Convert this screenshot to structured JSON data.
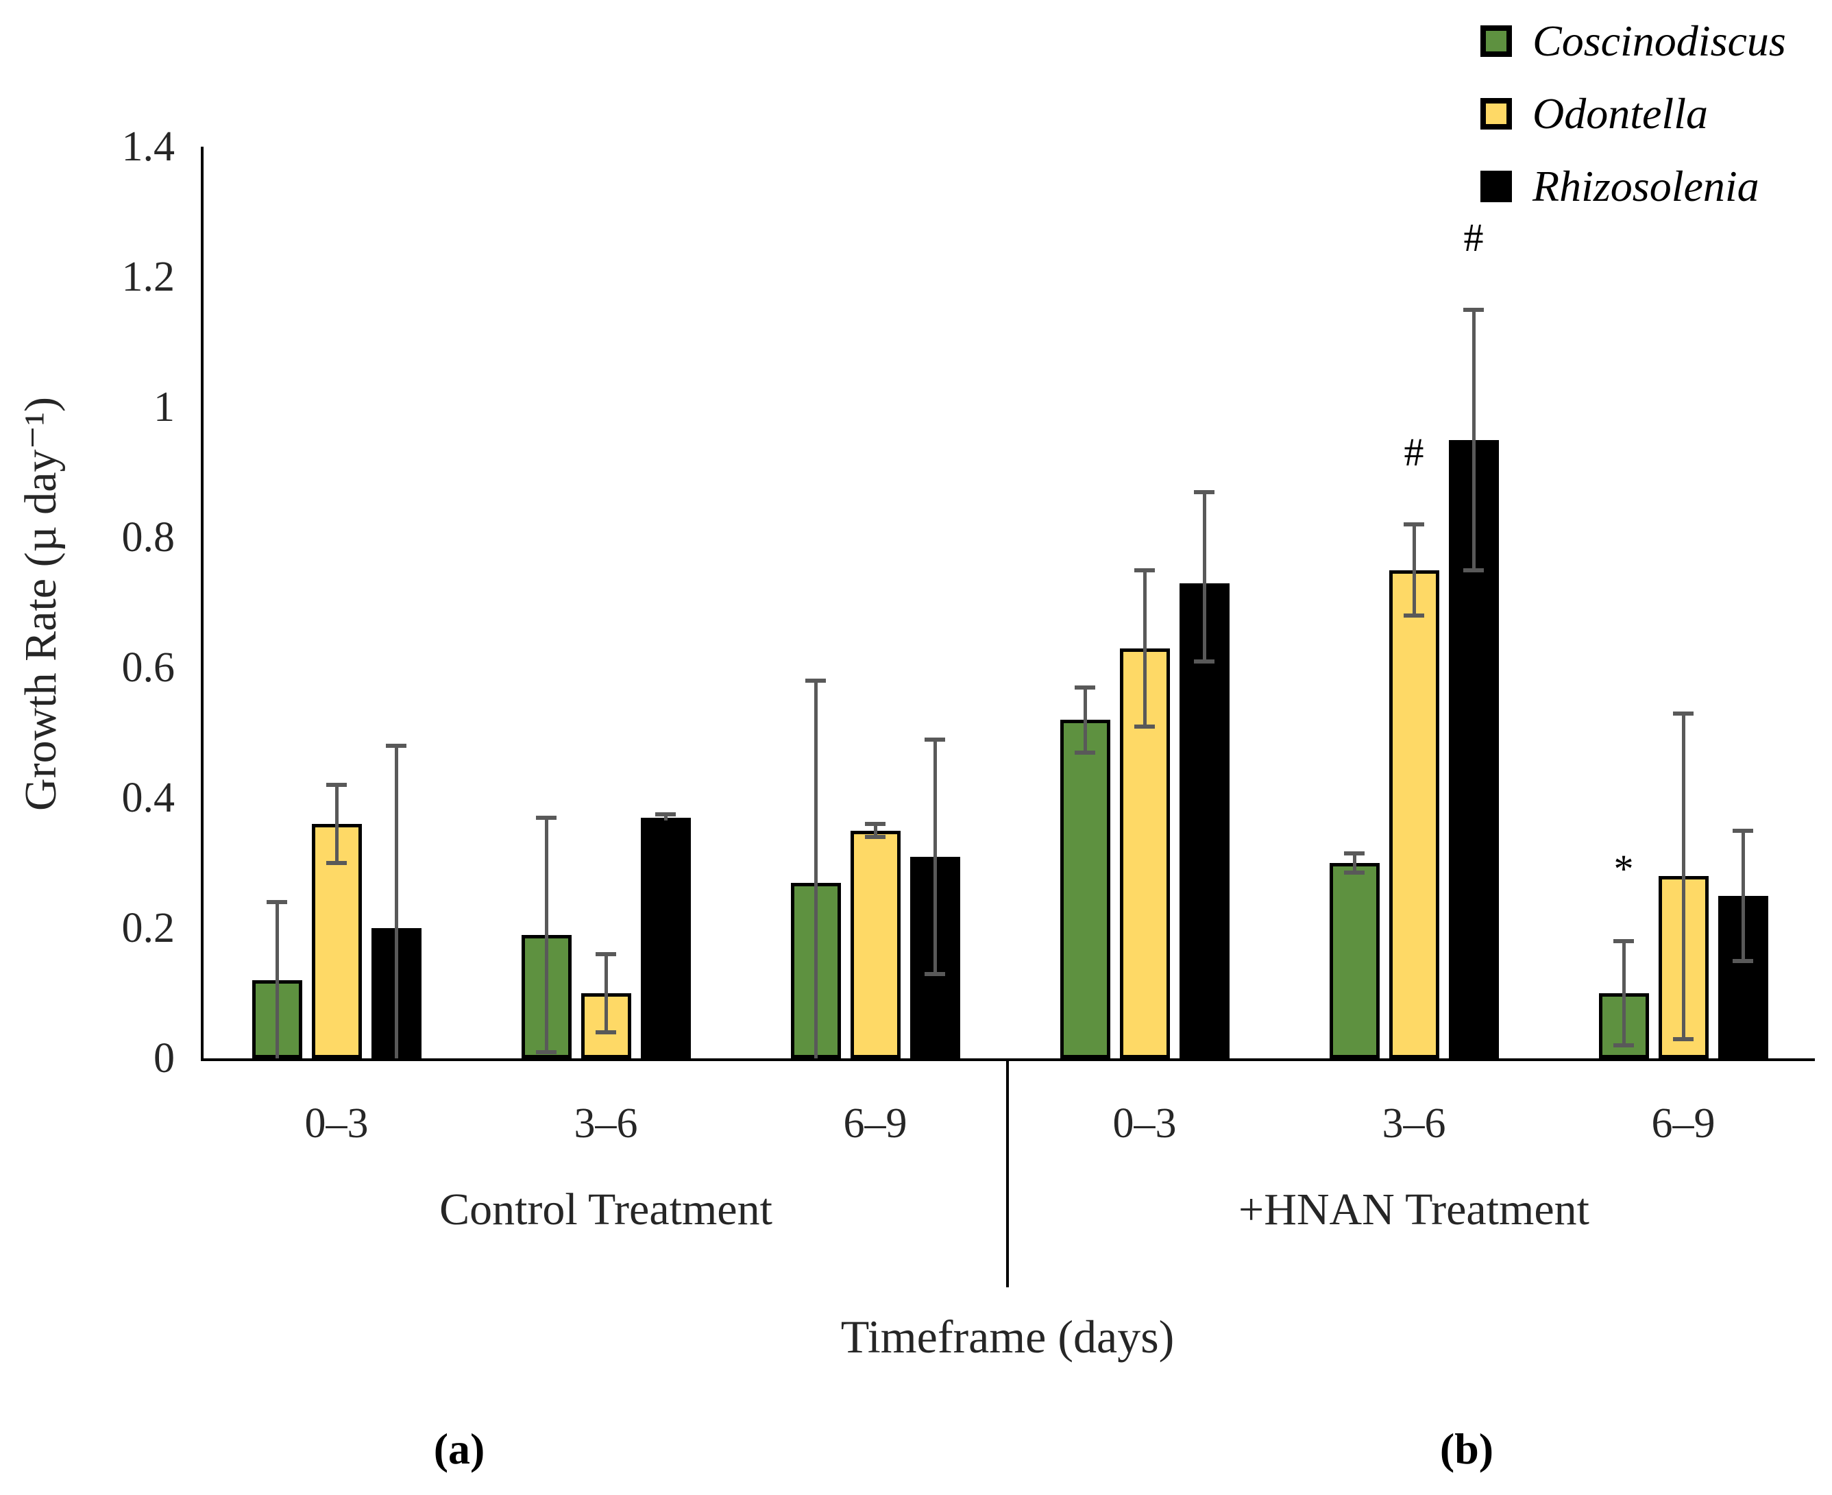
{
  "figure": {
    "ylabel": "Growth Rate (µ day⁻¹)",
    "xlabel": "Timeframe (days)",
    "caption_a": "(a)",
    "caption_b": "(b)"
  },
  "chart_data": {
    "type": "bar",
    "title": "",
    "ylabel": "Growth Rate (µ day⁻¹)",
    "xlabel": "Timeframe (days)",
    "ylim": [
      0,
      1.4
    ],
    "yticks": [
      0,
      0.2,
      0.4,
      0.6,
      0.8,
      1,
      1.2,
      1.4
    ],
    "ytick_labels": [
      "0",
      "0.2",
      "0.4",
      "0.6",
      "0.8",
      "1",
      "1.2",
      "1.4"
    ],
    "grid": false,
    "legend_position": "top-right",
    "error_bar_color": "#595959",
    "panels": [
      {
        "label": "Control Treatment",
        "caption": "(a)",
        "categories": [
          "0–3",
          "3–6",
          "6–9"
        ]
      },
      {
        "label": "+HNAN Treatment",
        "caption": "(b)",
        "categories": [
          "0–3",
          "3–6",
          "6–9"
        ]
      }
    ],
    "group_order": [
      "Control 0–3",
      "Control 3–6",
      "Control 6–9",
      "+HNAN 0–3",
      "+HNAN 3–6",
      "+HNAN 6–9"
    ],
    "series": [
      {
        "name": "Coscinodiscus",
        "color": "#5e9140",
        "values": [
          0.12,
          0.19,
          0.27,
          0.52,
          0.3,
          0.1
        ],
        "err_up": [
          0.12,
          0.18,
          0.31,
          0.05,
          0.015,
          0.08
        ],
        "err_down": [
          0.12,
          0.18,
          0.27,
          0.05,
          0.015,
          0.08
        ],
        "cap_down": [
          false,
          true,
          false,
          true,
          true,
          true
        ]
      },
      {
        "name": "Odontella",
        "color": "#fed966",
        "values": [
          0.36,
          0.1,
          0.35,
          0.63,
          0.75,
          0.28
        ],
        "err_up": [
          0.06,
          0.06,
          0.01,
          0.12,
          0.07,
          0.25
        ],
        "err_down": [
          0.06,
          0.06,
          0.01,
          0.12,
          0.07,
          0.25
        ],
        "cap_down": [
          true,
          true,
          true,
          true,
          true,
          true
        ]
      },
      {
        "name": "Rhizosolenia",
        "color": "#000000",
        "values": [
          0.2,
          0.37,
          0.31,
          0.73,
          0.95,
          0.25
        ],
        "err_up": [
          0.28,
          0.005,
          0.18,
          0.14,
          0.2,
          0.1
        ],
        "err_down": [
          0.2,
          0.005,
          0.18,
          0.12,
          0.2,
          0.1
        ],
        "cap_down": [
          false,
          false,
          true,
          true,
          true,
          true
        ]
      }
    ],
    "annotations": [
      {
        "text": "#",
        "series": "Odontella",
        "group_index": 4
      },
      {
        "text": "#",
        "series": "Rhizosolenia",
        "group_index": 4
      },
      {
        "text": "*",
        "series": "Coscinodiscus",
        "group_index": 5
      }
    ]
  }
}
